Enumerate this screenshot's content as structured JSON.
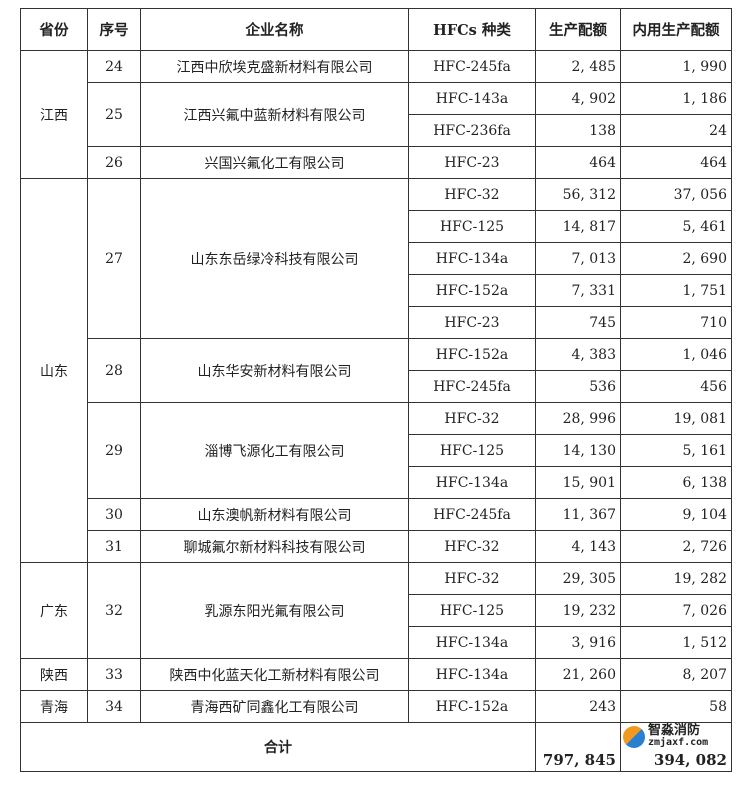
{
  "headers": [
    "省份",
    "序号",
    "企业名称",
    "HFCs 种类",
    "生产配额",
    "内用生产配额"
  ],
  "rows": [
    {
      "province": "江西",
      "pspan": 4,
      "no": "24",
      "nspan": 1,
      "company": "江西中欣埃克盛新材料有限公司",
      "type": "HFC-245fa",
      "quota": "2, 485",
      "internal": "1, 990"
    },
    {
      "no": "25",
      "nspan": 2,
      "company": "江西兴氟中蓝新材料有限公司",
      "type": "HFC-143a",
      "quota": "4, 902",
      "internal": "1, 186"
    },
    {
      "type": "HFC-236fa",
      "quota": "138",
      "internal": "24"
    },
    {
      "no": "26",
      "nspan": 1,
      "company": "兴国兴氟化工有限公司",
      "type": "HFC-23",
      "quota": "464",
      "internal": "464"
    },
    {
      "province": "山东",
      "pspan": 12,
      "no": "27",
      "nspan": 5,
      "company": "山东东岳绿冷科技有限公司",
      "type": "HFC-32",
      "quota": "56, 312",
      "internal": "37, 056"
    },
    {
      "type": "HFC-125",
      "quota": "14, 817",
      "internal": "5, 461"
    },
    {
      "type": "HFC-134a",
      "quota": "7, 013",
      "internal": "2, 690"
    },
    {
      "type": "HFC-152a",
      "quota": "7, 331",
      "internal": "1, 751"
    },
    {
      "type": "HFC-23",
      "quota": "745",
      "internal": "710"
    },
    {
      "no": "28",
      "nspan": 2,
      "company": "山东华安新材料有限公司",
      "type": "HFC-152a",
      "quota": "4, 383",
      "internal": "1, 046"
    },
    {
      "type": "HFC-245fa",
      "quota": "536",
      "internal": "456"
    },
    {
      "no": "29",
      "nspan": 3,
      "company": "淄博飞源化工有限公司",
      "type": "HFC-32",
      "quota": "28, 996",
      "internal": "19, 081"
    },
    {
      "type": "HFC-125",
      "quota": "14, 130",
      "internal": "5, 161"
    },
    {
      "type": "HFC-134a",
      "quota": "15, 901",
      "internal": "6, 138"
    },
    {
      "no": "30",
      "nspan": 1,
      "company": "山东澳帆新材料有限公司",
      "type": "HFC-245fa",
      "quota": "11, 367",
      "internal": "9, 104"
    },
    {
      "no": "31",
      "nspan": 1,
      "company": "聊城氟尔新材料科技有限公司",
      "type": "HFC-32",
      "quota": "4, 143",
      "internal": "2, 726"
    },
    {
      "province": "广东",
      "pspan": 3,
      "no": "32",
      "nspan": 3,
      "company": "乳源东阳光氟有限公司",
      "type": "HFC-32",
      "quota": "29, 305",
      "internal": "19, 282"
    },
    {
      "type": "HFC-125",
      "quota": "19, 232",
      "internal": "7, 026"
    },
    {
      "type": "HFC-134a",
      "quota": "3, 916",
      "internal": "1, 512"
    },
    {
      "province": "陕西",
      "pspan": 1,
      "no": "33",
      "nspan": 1,
      "company": "陕西中化蓝天化工新材料有限公司",
      "type": "HFC-134a",
      "quota": "21, 260",
      "internal": "8, 207"
    },
    {
      "province": "青海",
      "pspan": 1,
      "no": "34",
      "nspan": 1,
      "company": "青海西矿同鑫化工有限公司",
      "type": "HFC-152a",
      "quota": "243",
      "internal": "58"
    }
  ],
  "total": {
    "label": "合计",
    "quota": "797, 845",
    "internal": "394, 082"
  },
  "watermark": {
    "name": "智淼消防",
    "site": "zmjaxf.com"
  }
}
